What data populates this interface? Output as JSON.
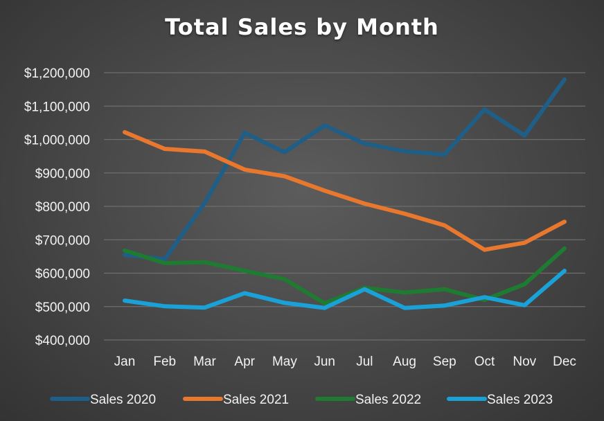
{
  "chart_data": {
    "type": "line",
    "title": "Total Sales by Month",
    "xlabel": "",
    "ylabel": "",
    "categories": [
      "Jan",
      "Feb",
      "Mar",
      "Apr",
      "May",
      "Jun",
      "Jul",
      "Aug",
      "Sep",
      "Oct",
      "Nov",
      "Dec"
    ],
    "ylim": [
      400000,
      1200000
    ],
    "yticks": [
      400000,
      500000,
      600000,
      700000,
      800000,
      900000,
      1000000,
      1100000,
      1200000
    ],
    "ytick_labels": [
      "$400,000",
      "$500,000",
      "$600,000",
      "$700,000",
      "$800,000",
      "$900,000",
      "$1,000,000",
      "$1,100,000",
      "$1,200,000"
    ],
    "grid": true,
    "legend_position": "bottom",
    "series": [
      {
        "name": "Sales 2020",
        "color": "#1f5e86",
        "values": [
          655000,
          642000,
          810000,
          1020000,
          962000,
          1042000,
          988000,
          965000,
          955000,
          1090000,
          1012000,
          1180000
        ]
      },
      {
        "name": "Sales 2021",
        "color": "#e9782f",
        "values": [
          1022000,
          972000,
          964000,
          910000,
          890000,
          847000,
          808000,
          778000,
          743000,
          670000,
          691000,
          754000
        ]
      },
      {
        "name": "Sales 2022",
        "color": "#1f7a32",
        "values": [
          668000,
          630000,
          633000,
          607000,
          582000,
          510000,
          556000,
          542000,
          552000,
          520000,
          567000,
          674000
        ]
      },
      {
        "name": "Sales 2023",
        "color": "#1aa2d8",
        "values": [
          518000,
          501000,
          497000,
          540000,
          511000,
          496000,
          552000,
          496000,
          503000,
          528000,
          504000,
          607000
        ]
      }
    ]
  }
}
